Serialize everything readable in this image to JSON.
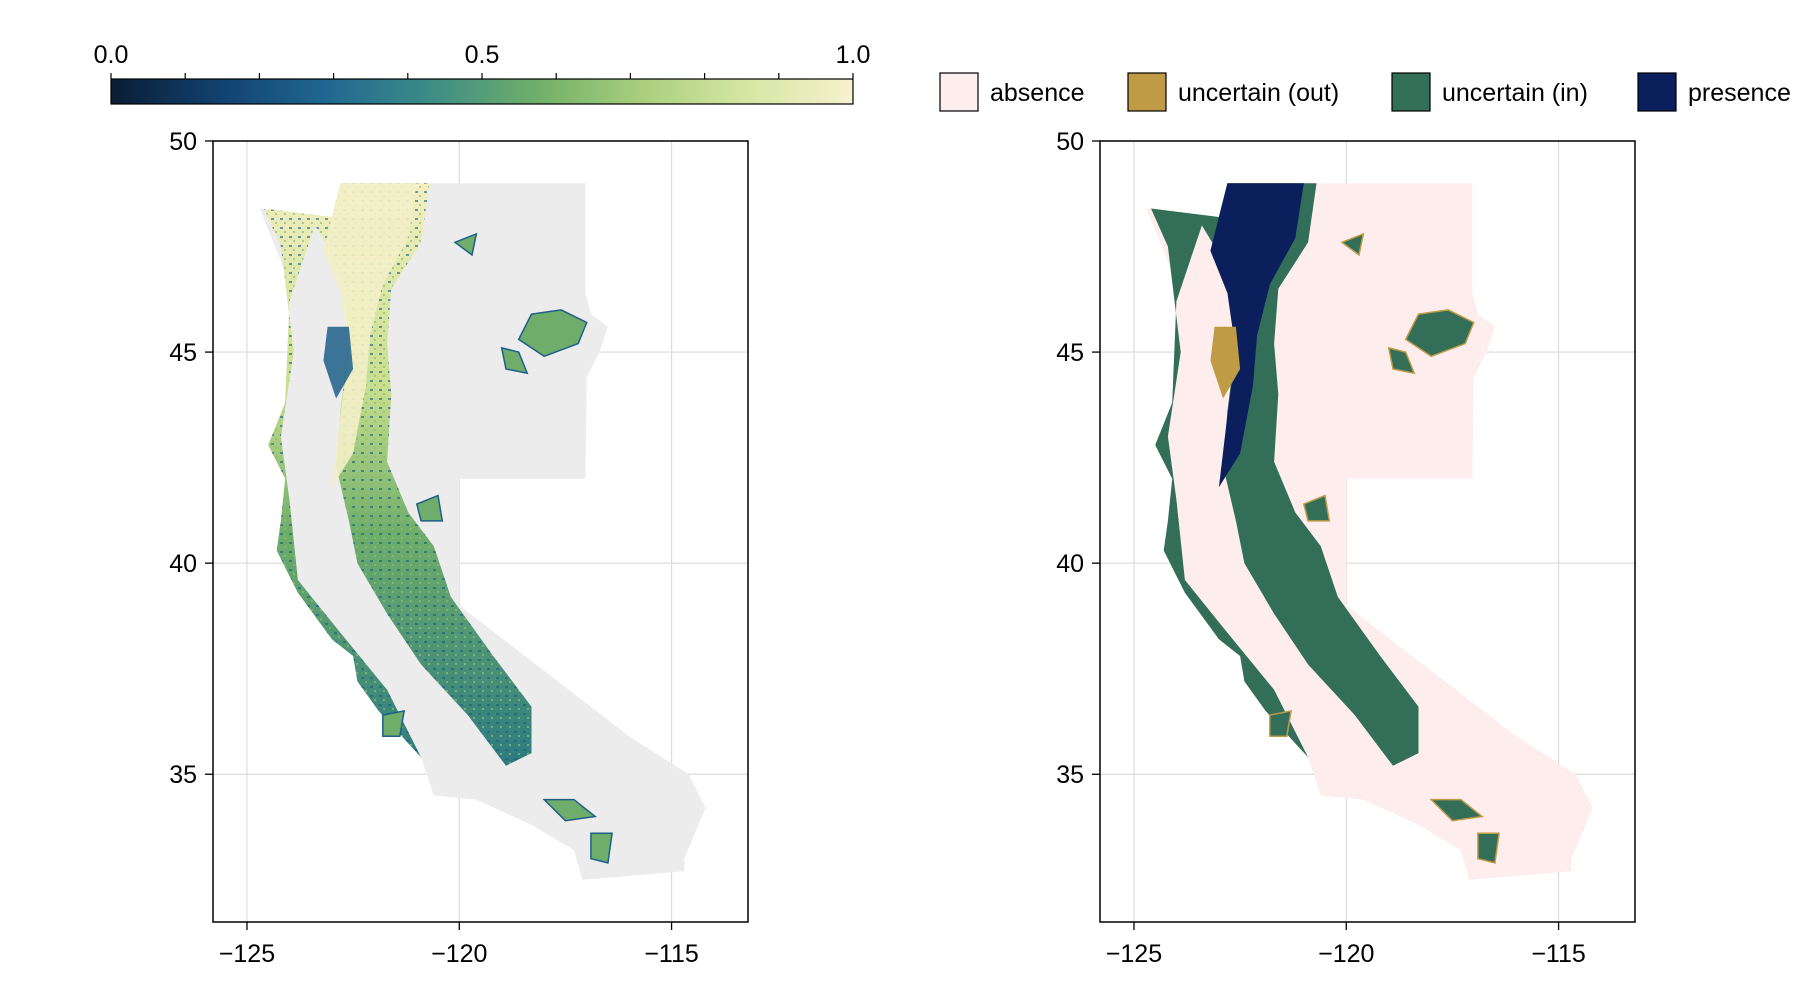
{
  "colorbar": {
    "ticks": [
      {
        "value": 0.0,
        "label": "0.0"
      },
      {
        "value": 0.5,
        "label": "0.5"
      },
      {
        "value": 1.0,
        "label": "1.0"
      }
    ],
    "colormap_stops": [
      "#0a1d33",
      "#12406e",
      "#1f6690",
      "#3b8c86",
      "#6fae6a",
      "#a9cf7b",
      "#d6e6a4",
      "#f6f2cf"
    ]
  },
  "legend": {
    "items": [
      {
        "id": "absence",
        "label": "absence",
        "color": "#fdeded"
      },
      {
        "id": "uncertain-out",
        "label": "uncertain (out)",
        "color": "#bf9b45"
      },
      {
        "id": "uncertain-in",
        "label": "uncertain (in)",
        "color": "#326e58"
      },
      {
        "id": "presence",
        "label": "presence",
        "color": "#0b1f5c"
      }
    ]
  },
  "maps": [
    {
      "id": "probability",
      "x_ticks": [
        {
          "value": -125,
          "label": "−125"
        },
        {
          "value": -120,
          "label": "−120"
        },
        {
          "value": -115,
          "label": "−115"
        }
      ],
      "y_ticks": [
        {
          "value": 50,
          "label": "50"
        },
        {
          "value": 45,
          "label": "45"
        },
        {
          "value": 40,
          "label": "40"
        },
        {
          "value": 35,
          "label": "35"
        }
      ],
      "background_color": "#ececec"
    },
    {
      "id": "classification",
      "x_ticks": [
        {
          "value": -125,
          "label": "−125"
        },
        {
          "value": -120,
          "label": "−120"
        },
        {
          "value": -115,
          "label": "−115"
        }
      ],
      "y_ticks": [
        {
          "value": 50,
          "label": "50"
        },
        {
          "value": 45,
          "label": "45"
        },
        {
          "value": 40,
          "label": "40"
        },
        {
          "value": 35,
          "label": "35"
        }
      ],
      "background_color": "#fdeded"
    }
  ],
  "axis_range": {
    "lon": [
      -125.8,
      -113.2
    ],
    "lat": [
      31.5,
      50.0
    ]
  },
  "region_outline": [
    [
      -124.7,
      48.4
    ],
    [
      -123.0,
      48.2
    ],
    [
      -122.8,
      49.0
    ],
    [
      -117.03,
      49.0
    ],
    [
      -117.03,
      46.4
    ],
    [
      -116.9,
      45.9
    ],
    [
      -116.5,
      45.6
    ],
    [
      -116.7,
      45.0
    ],
    [
      -117.0,
      44.4
    ],
    [
      -117.03,
      42.0
    ],
    [
      -120.0,
      42.0
    ],
    [
      -120.0,
      39.0
    ],
    [
      -116.0,
      35.9
    ],
    [
      -114.6,
      35.0
    ],
    [
      -114.2,
      34.2
    ],
    [
      -114.7,
      33.0
    ],
    [
      -114.7,
      32.7
    ],
    [
      -117.1,
      32.5
    ],
    [
      -117.3,
      33.2
    ],
    [
      -118.3,
      33.8
    ],
    [
      -119.6,
      34.4
    ],
    [
      -120.6,
      34.5
    ],
    [
      -120.9,
      35.4
    ],
    [
      -121.9,
      36.5
    ],
    [
      -122.4,
      37.2
    ],
    [
      -122.5,
      37.8
    ],
    [
      -123.0,
      38.2
    ],
    [
      -123.8,
      39.3
    ],
    [
      -124.3,
      40.3
    ],
    [
      -124.2,
      41.0
    ],
    [
      -124.1,
      42.0
    ],
    [
      -124.5,
      42.8
    ],
    [
      -124.1,
      43.8
    ],
    [
      -124.0,
      46.2
    ],
    [
      -124.1,
      46.9
    ],
    [
      -124.7,
      48.4
    ]
  ],
  "habitat_band": [
    [
      -124.6,
      48.4
    ],
    [
      -123.0,
      48.2
    ],
    [
      -122.8,
      49.0
    ],
    [
      -120.7,
      49.0
    ],
    [
      -120.9,
      47.6
    ],
    [
      -121.6,
      46.5
    ],
    [
      -121.7,
      45.2
    ],
    [
      -121.6,
      44.0
    ],
    [
      -121.7,
      42.4
    ],
    [
      -121.2,
      41.2
    ],
    [
      -120.6,
      40.4
    ],
    [
      -120.2,
      39.2
    ],
    [
      -119.2,
      37.8
    ],
    [
      -118.3,
      36.6
    ],
    [
      -118.3,
      35.5
    ],
    [
      -118.9,
      35.2
    ],
    [
      -119.8,
      36.4
    ],
    [
      -120.9,
      37.6
    ],
    [
      -121.7,
      38.8
    ],
    [
      -122.4,
      40.0
    ],
    [
      -122.6,
      41.0
    ],
    [
      -122.9,
      42.3
    ],
    [
      -122.8,
      43.6
    ],
    [
      -122.6,
      45.2
    ],
    [
      -122.7,
      46.6
    ],
    [
      -123.1,
      47.5
    ],
    [
      -123.4,
      48.0
    ],
    [
      -124.0,
      46.2
    ],
    [
      -124.1,
      43.8
    ],
    [
      -124.5,
      42.8
    ],
    [
      -124.1,
      42.0
    ],
    [
      -124.2,
      41.0
    ],
    [
      -124.3,
      40.3
    ],
    [
      -123.8,
      39.3
    ],
    [
      -123.0,
      38.2
    ],
    [
      -122.5,
      37.8
    ],
    [
      -122.4,
      37.2
    ],
    [
      -121.9,
      36.5
    ],
    [
      -120.9,
      35.4
    ],
    [
      -121.7,
      37.0
    ],
    [
      -123.0,
      38.6
    ],
    [
      -123.8,
      39.6
    ],
    [
      -124.0,
      41.5
    ],
    [
      -124.2,
      43.0
    ],
    [
      -123.9,
      45.0
    ],
    [
      -124.2,
      47.5
    ],
    [
      -124.6,
      48.4
    ]
  ],
  "core_zone": [
    [
      -123.0,
      48.2
    ],
    [
      -122.8,
      49.0
    ],
    [
      -121.0,
      49.0
    ],
    [
      -121.2,
      47.7
    ],
    [
      -121.8,
      46.6
    ],
    [
      -122.1,
      45.4
    ],
    [
      -122.2,
      44.2
    ],
    [
      -122.5,
      42.6
    ],
    [
      -123.0,
      41.8
    ],
    [
      -122.8,
      43.5
    ],
    [
      -122.6,
      45.0
    ],
    [
      -122.8,
      46.4
    ],
    [
      -123.2,
      47.4
    ],
    [
      -123.0,
      48.2
    ]
  ],
  "valley_gap": [
    [
      -123.1,
      45.6
    ],
    [
      -122.6,
      45.6
    ],
    [
      -122.5,
      44.6
    ],
    [
      -122.9,
      43.9
    ],
    [
      -123.2,
      44.8
    ]
  ],
  "east_patches": [
    [
      [
        -118.3,
        45.9
      ],
      [
        -117.6,
        46.0
      ],
      [
        -117.0,
        45.7
      ],
      [
        -117.2,
        45.2
      ],
      [
        -118.0,
        44.9
      ],
      [
        -118.6,
        45.3
      ]
    ],
    [
      [
        -119.0,
        45.1
      ],
      [
        -118.6,
        45.0
      ],
      [
        -118.4,
        44.5
      ],
      [
        -118.9,
        44.6
      ]
    ],
    [
      [
        -120.1,
        47.6
      ],
      [
        -119.6,
        47.8
      ],
      [
        -119.7,
        47.3
      ]
    ],
    [
      [
        -121.0,
        41.4
      ],
      [
        -120.5,
        41.6
      ],
      [
        -120.4,
        41.0
      ],
      [
        -120.9,
        41.0
      ]
    ],
    [
      [
        -118.0,
        34.4
      ],
      [
        -117.3,
        34.4
      ],
      [
        -116.8,
        34.0
      ],
      [
        -117.5,
        33.9
      ]
    ],
    [
      [
        -116.9,
        33.6
      ],
      [
        -116.4,
        33.6
      ],
      [
        -116.5,
        32.9
      ],
      [
        -116.9,
        33.0
      ]
    ],
    [
      [
        -121.8,
        36.4
      ],
      [
        -121.3,
        36.5
      ],
      [
        -121.4,
        35.9
      ],
      [
        -121.8,
        35.9
      ]
    ]
  ]
}
